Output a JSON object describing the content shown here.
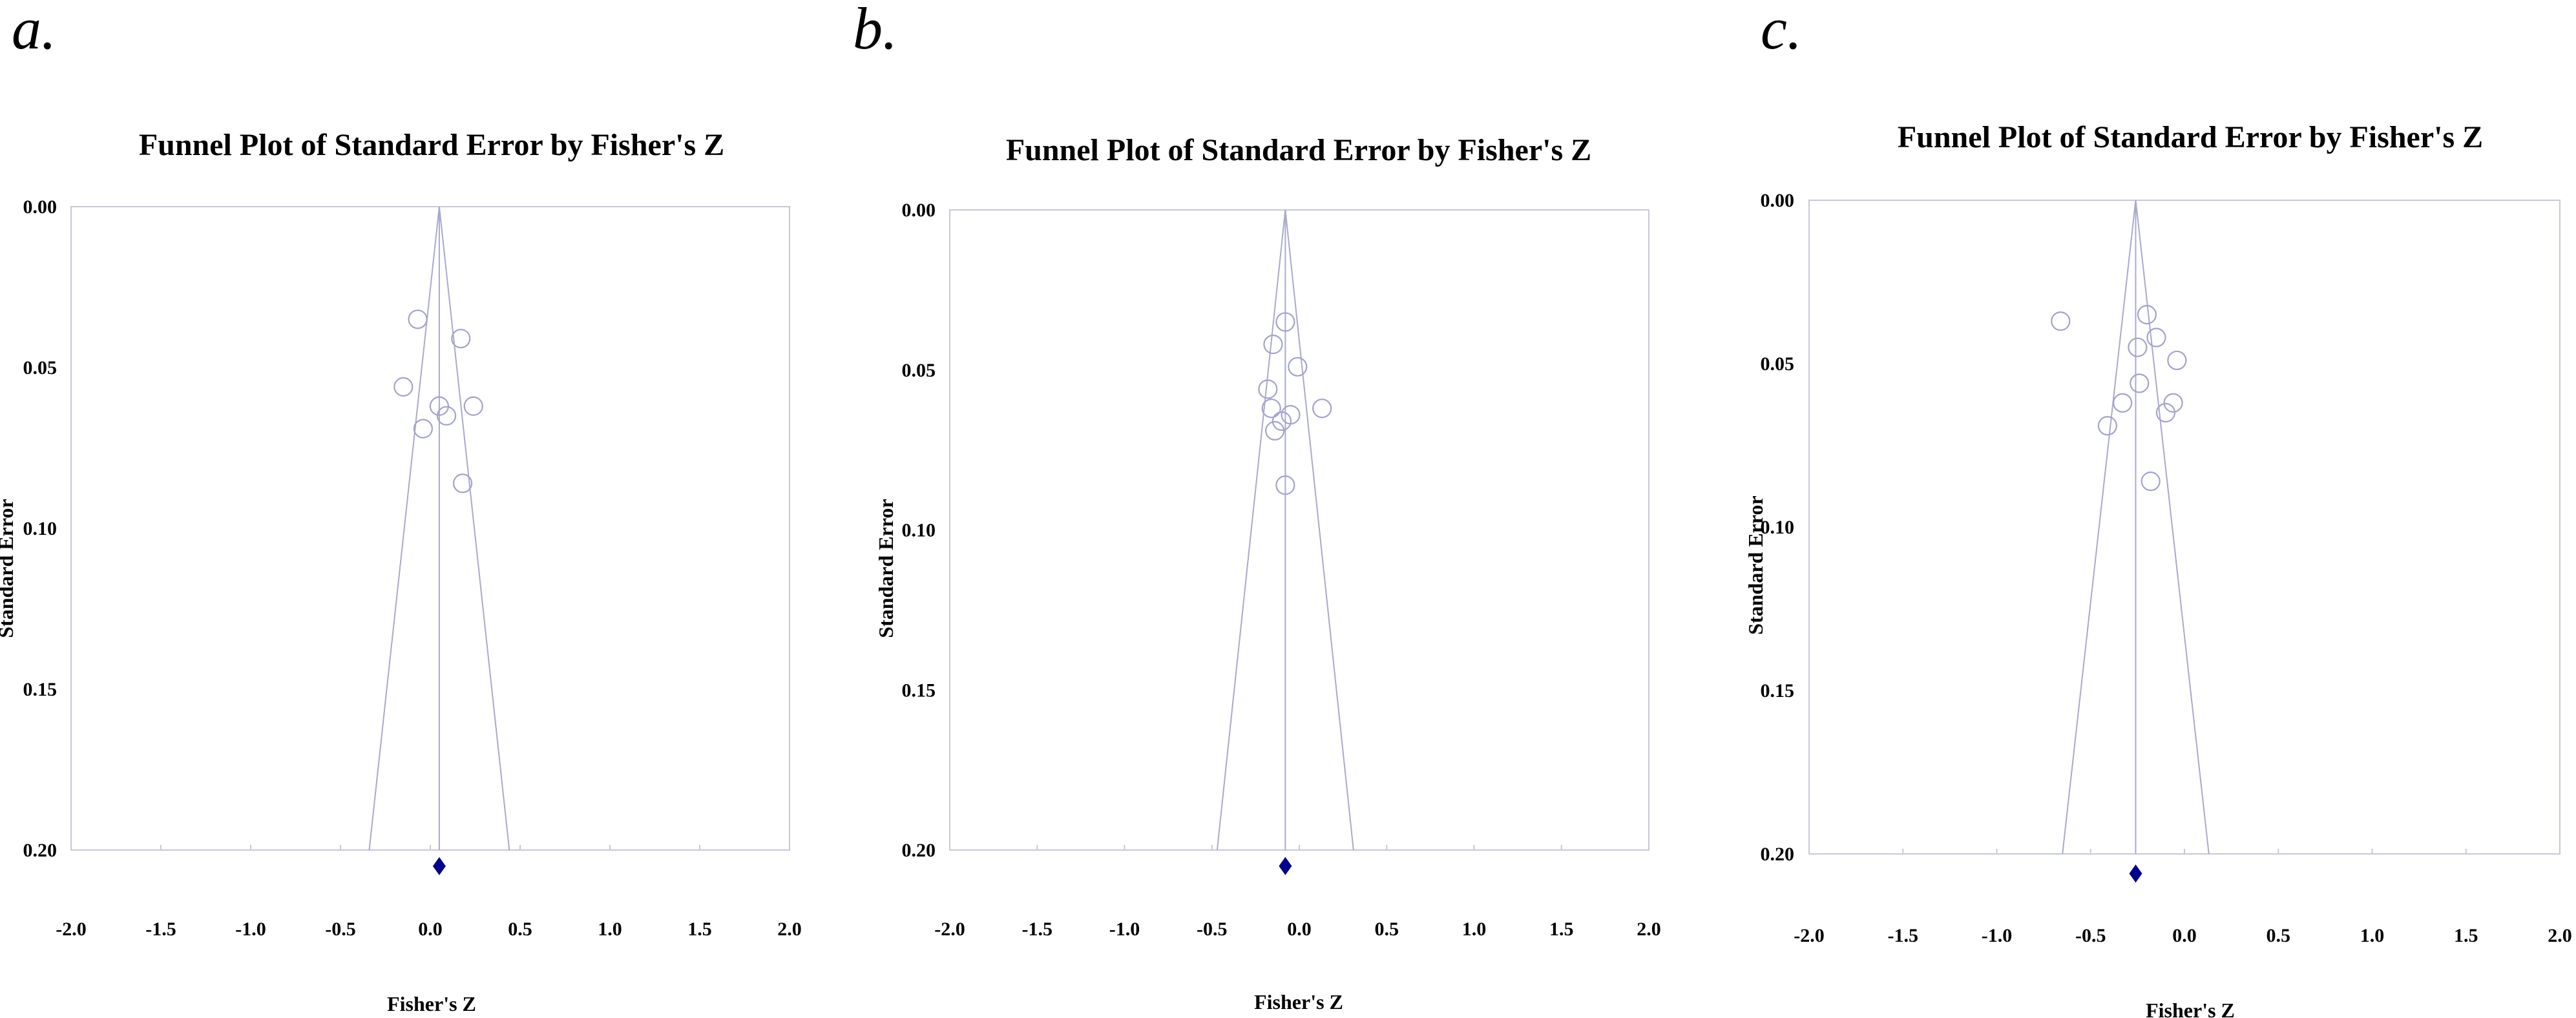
{
  "chart_data": [
    {
      "type": "scatter",
      "panel_label": "a.",
      "title": "Funnel Plot of Standard Error by Fisher's Z",
      "xlabel": "Fisher's Z",
      "ylabel": "Standard Error",
      "xlim": [
        -2.0,
        2.0
      ],
      "ylim": [
        0.0,
        0.2
      ],
      "y_inverted": true,
      "x_ticks": [
        "-2.0",
        "-1.5",
        "-1.0",
        "-0.5",
        "0.0",
        "0.5",
        "1.0",
        "1.5",
        "2.0"
      ],
      "y_ticks": [
        "0.00",
        "0.05",
        "0.10",
        "0.15",
        "0.20"
      ],
      "grid": false,
      "legend": "none",
      "summary_effect": 0.05,
      "summary_marker_y": 0.205,
      "funnel": {
        "apex": [
          0.05,
          0.0
        ],
        "left_base": [
          -0.34,
          0.2
        ],
        "right_base": [
          0.44,
          0.2
        ]
      },
      "points": [
        {
          "x": -0.07,
          "y": 0.035
        },
        {
          "x": 0.17,
          "y": 0.041
        },
        {
          "x": -0.15,
          "y": 0.056
        },
        {
          "x": 0.05,
          "y": 0.062
        },
        {
          "x": 0.24,
          "y": 0.062
        },
        {
          "x": 0.09,
          "y": 0.065
        },
        {
          "x": -0.04,
          "y": 0.069
        },
        {
          "x": 0.18,
          "y": 0.086
        }
      ],
      "colors": {
        "points": "#a3a3cc",
        "funnel": "#a9a9cf",
        "summary": "#00008b"
      }
    },
    {
      "type": "scatter",
      "panel_label": "b.",
      "title": "Funnel Plot of Standard Error by Fisher's Z",
      "xlabel": "Fisher's Z",
      "ylabel": "Standard Error",
      "xlim": [
        -2.0,
        2.0
      ],
      "ylim": [
        0.0,
        0.2
      ],
      "y_inverted": true,
      "x_ticks": [
        "-2.0",
        "-1.5",
        "-1.0",
        "-0.5",
        "0.0",
        "0.5",
        "1.0",
        "1.5",
        "2.0"
      ],
      "y_ticks": [
        "0.00",
        "0.05",
        "0.10",
        "0.15",
        "0.20"
      ],
      "grid": false,
      "legend": "none",
      "summary_effect": -0.08,
      "summary_marker_y": 0.205,
      "funnel": {
        "apex": [
          -0.08,
          0.0
        ],
        "left_base": [
          -0.47,
          0.2
        ],
        "right_base": [
          0.31,
          0.2
        ]
      },
      "points": [
        {
          "x": -0.08,
          "y": 0.035
        },
        {
          "x": -0.15,
          "y": 0.042
        },
        {
          "x": -0.01,
          "y": 0.049
        },
        {
          "x": -0.18,
          "y": 0.056
        },
        {
          "x": -0.16,
          "y": 0.062
        },
        {
          "x": 0.13,
          "y": 0.062
        },
        {
          "x": -0.05,
          "y": 0.064
        },
        {
          "x": -0.1,
          "y": 0.066
        },
        {
          "x": -0.14,
          "y": 0.069
        },
        {
          "x": -0.08,
          "y": 0.086
        }
      ],
      "colors": {
        "points": "#a3a3cc",
        "funnel": "#a9a9cf",
        "summary": "#00008b"
      }
    },
    {
      "type": "scatter",
      "panel_label": "c.",
      "title": "Funnel Plot of Standard Error by Fisher's Z",
      "xlabel": "Fisher's Z",
      "ylabel": "Standard Error",
      "xlim": [
        -2.0,
        2.0
      ],
      "ylim": [
        0.0,
        0.2
      ],
      "y_inverted": true,
      "x_ticks": [
        "-2.0",
        "-1.5",
        "-1.0",
        "-0.5",
        "0.0",
        "0.5",
        "1.0",
        "1.5",
        "2.0"
      ],
      "y_ticks": [
        "0.00",
        "0.05",
        "0.10",
        "0.15",
        "0.20"
      ],
      "grid": false,
      "legend": "none",
      "summary_effect": -0.26,
      "summary_marker_y": 0.206,
      "funnel": {
        "apex": [
          -0.26,
          0.0
        ],
        "left_base": [
          -0.65,
          0.2
        ],
        "right_base": [
          0.13,
          0.2
        ]
      },
      "points": [
        {
          "x": -0.66,
          "y": 0.037
        },
        {
          "x": -0.2,
          "y": 0.035
        },
        {
          "x": -0.15,
          "y": 0.042
        },
        {
          "x": -0.25,
          "y": 0.045
        },
        {
          "x": -0.04,
          "y": 0.049
        },
        {
          "x": -0.24,
          "y": 0.056
        },
        {
          "x": -0.33,
          "y": 0.062
        },
        {
          "x": -0.06,
          "y": 0.062
        },
        {
          "x": -0.1,
          "y": 0.065
        },
        {
          "x": -0.41,
          "y": 0.069
        },
        {
          "x": -0.18,
          "y": 0.086
        }
      ],
      "colors": {
        "points": "#a3a3cc",
        "funnel": "#a9a9cf",
        "summary": "#00008b"
      }
    }
  ]
}
